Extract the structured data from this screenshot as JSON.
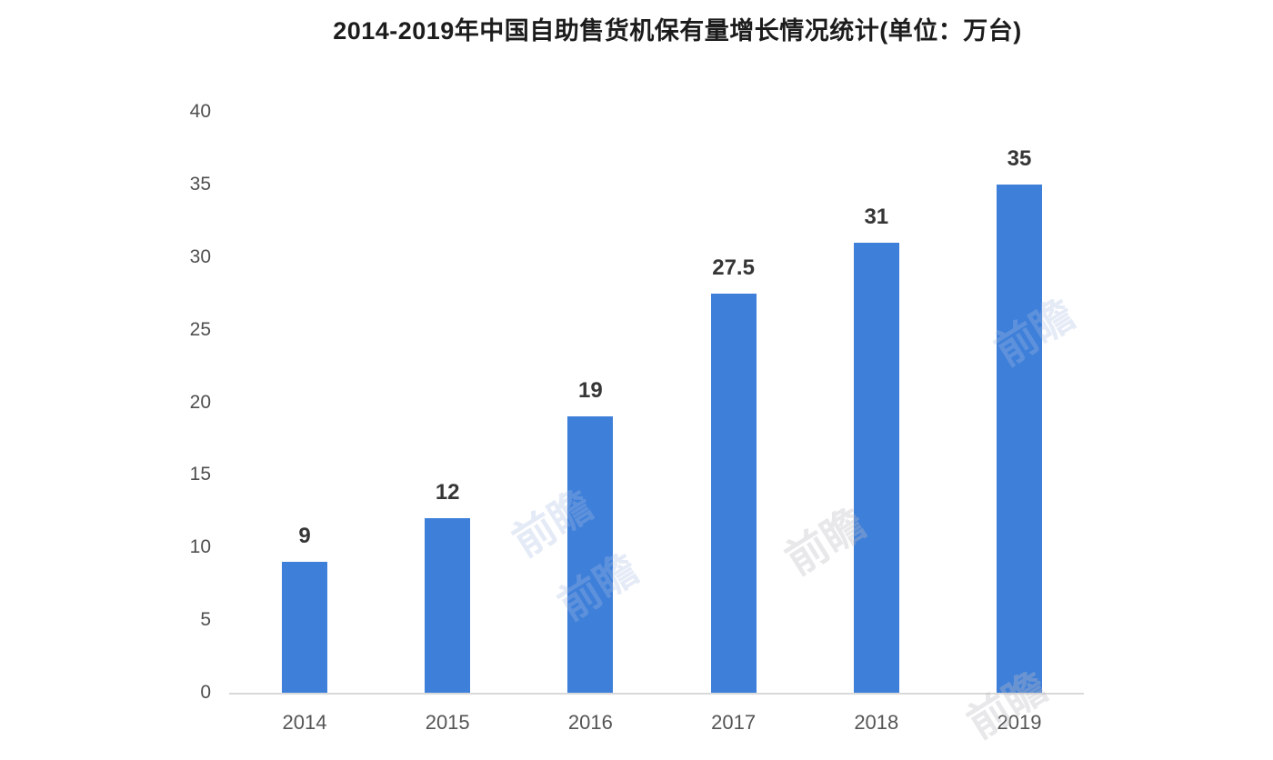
{
  "title": "2014-2019年中国自助售货机保有量增长情况统计(单位：万台)",
  "watermark_text": "前瞻",
  "colors": {
    "bar": "#3E7FD9",
    "axis_line": "#d9d9d9",
    "tick_label": "#4f4f4f",
    "value_label": "#363636",
    "title": "#1c1c1c",
    "background": "#ffffff"
  },
  "chart_data": {
    "type": "bar",
    "title": "2014-2019年中国自助售货机保有量增长情况统计(单位：万台)",
    "categories": [
      "2014",
      "2015",
      "2016",
      "2017",
      "2018",
      "2019"
    ],
    "values": [
      9,
      12,
      19,
      27.5,
      31,
      35
    ],
    "value_labels": [
      "9",
      "12",
      "19",
      "27.5",
      "31",
      "35"
    ],
    "series_name": "中国自助售货机保有量",
    "unit": "万台",
    "xlabel": "",
    "ylabel": "",
    "ylim": [
      0,
      40
    ],
    "yticks": [
      0,
      5,
      10,
      15,
      20,
      25,
      30,
      35,
      40
    ],
    "grid": false,
    "legend": null,
    "bar_color": "#3E7FD9"
  }
}
